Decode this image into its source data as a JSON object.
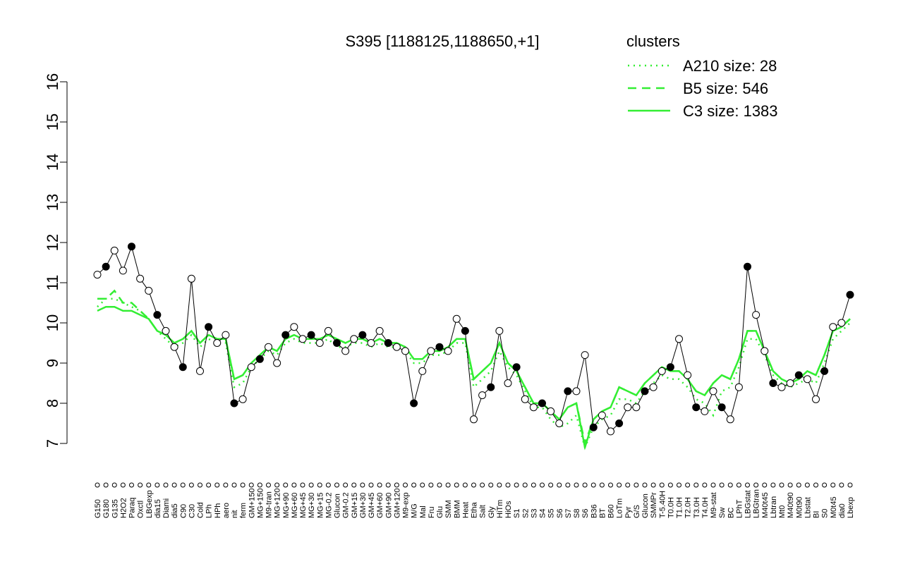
{
  "chart_data": {
    "type": "line",
    "title": "S395 [1188125,1188650,+1]",
    "legend_title": "clusters",
    "color": "#000000",
    "cluster_color": "#33ee33",
    "categories": [
      "G150",
      "G180",
      "G135",
      "H2O2",
      "Paraq",
      "Oxctl",
      "LBGexp",
      "dia15",
      "Diami",
      "dia5",
      "C90",
      "C30",
      "Cold",
      "LPh",
      "HPh",
      "aero",
      "nit",
      "ferm",
      "GM+150",
      "MG+150",
      "M9-tran",
      "MG+120",
      "MG+90",
      "MG+60",
      "MG+45",
      "MG+30",
      "MG+15",
      "MG-0.2",
      "Glucon",
      "GM-0.2",
      "GM+15",
      "GM+30",
      "GM+45",
      "GM+60",
      "GM+90",
      "GM+120",
      "M9-exp",
      "M/G",
      "Mal",
      "Fru",
      "Glu",
      "SMM",
      "BMM",
      "Heat",
      "Etha",
      "Salt",
      "Gly",
      "HiTm",
      "HiOs",
      "S1",
      "S2",
      "S3",
      "S4",
      "S5",
      "S6",
      "S7",
      "S8",
      "S6",
      "B36",
      "BT",
      "B60",
      "LoTm",
      "Pyr",
      "G/S",
      "Glucon",
      "SMMPr",
      "T-5.40H",
      "T0.0H",
      "T1.0H",
      "T2.0H",
      "T3.0H",
      "T4.0H",
      "M9-stat",
      "Sw",
      "BC",
      "LPhT",
      "LBGstat",
      "LBGtran",
      "M40t45",
      "Lbtran",
      "Mt0",
      "M40t90",
      "M0t90",
      "Lbstat",
      "BI",
      "S0",
      "M0t45",
      "dia0",
      "Lbexp"
    ],
    "values": [
      11.2,
      11.4,
      11.8,
      11.3,
      11.9,
      11.1,
      10.8,
      10.2,
      9.8,
      9.4,
      8.9,
      11.1,
      8.8,
      9.9,
      9.5,
      9.7,
      8.0,
      8.1,
      8.9,
      9.1,
      9.4,
      9.0,
      9.7,
      9.9,
      9.6,
      9.7,
      9.5,
      9.8,
      9.5,
      9.3,
      9.6,
      9.7,
      9.5,
      9.8,
      9.5,
      9.4,
      9.3,
      8.0,
      8.8,
      9.3,
      9.4,
      9.3,
      10.1,
      9.8,
      7.6,
      8.2,
      8.4,
      9.8,
      8.5,
      8.9,
      8.1,
      7.9,
      8.0,
      7.8,
      7.5,
      8.3,
      8.3,
      9.2,
      7.4,
      7.7,
      7.3,
      7.5,
      7.9,
      7.9,
      8.3,
      8.4,
      8.8,
      8.9,
      9.6,
      8.7,
      7.9,
      7.8,
      8.3,
      7.9,
      7.6,
      8.4,
      11.4,
      10.2,
      9.3,
      8.5,
      8.4,
      8.5,
      8.7,
      8.6,
      8.1,
      8.8,
      9.9,
      10.0,
      10.7
    ],
    "series": [
      {
        "name": "A210 size: 28",
        "style": "dotted",
        "values": [
          10.4,
          10.6,
          10.6,
          10.5,
          10.4,
          10.3,
          10.1,
          9.8,
          9.6,
          9.4,
          9.5,
          9.7,
          9.4,
          9.6,
          9.5,
          9.5,
          8.4,
          8.5,
          8.9,
          9.1,
          9.3,
          9.2,
          9.5,
          9.6,
          9.5,
          9.5,
          9.5,
          9.6,
          9.4,
          9.4,
          9.5,
          9.5,
          9.4,
          9.5,
          9.4,
          9.4,
          9.3,
          9.0,
          9.0,
          9.2,
          9.2,
          9.3,
          9.5,
          9.5,
          8.4,
          8.6,
          8.8,
          9.3,
          8.9,
          8.7,
          8.3,
          7.9,
          7.9,
          7.6,
          7.4,
          7.5,
          7.7,
          6.9,
          7.4,
          7.6,
          7.7,
          8.1,
          8.1,
          8.0,
          8.3,
          8.5,
          8.7,
          8.6,
          8.6,
          8.4,
          8.1,
          8.0,
          7.7,
          8.3,
          8.4,
          8.9,
          9.6,
          9.6,
          9.2,
          8.7,
          8.5,
          8.4,
          8.5,
          8.6,
          8.5,
          9.0,
          9.6,
          9.8,
          10.0
        ]
      },
      {
        "name": "B5 size: 546",
        "style": "dashed",
        "values": [
          10.6,
          10.6,
          10.8,
          10.5,
          10.5,
          10.3,
          10.1,
          9.8,
          9.7,
          9.5,
          9.6,
          9.8,
          9.5,
          9.7,
          9.6,
          9.6,
          8.6,
          8.7,
          9.0,
          9.2,
          9.4,
          9.3,
          9.6,
          9.7,
          9.6,
          9.6,
          9.6,
          9.7,
          9.6,
          9.5,
          9.6,
          9.6,
          9.5,
          9.6,
          9.5,
          9.5,
          9.4,
          9.1,
          9.1,
          9.3,
          9.3,
          9.4,
          9.6,
          9.6,
          8.6,
          8.8,
          9.0,
          9.5,
          9.0,
          8.8,
          8.4,
          8.0,
          8.0,
          7.8,
          7.6,
          7.9,
          8.0,
          7.0,
          7.6,
          7.8,
          7.9,
          8.4,
          8.3,
          8.2,
          8.5,
          8.7,
          8.9,
          8.8,
          8.8,
          8.6,
          8.3,
          8.2,
          8.5,
          8.7,
          8.6,
          9.1,
          9.8,
          9.8,
          9.3,
          8.8,
          8.6,
          8.5,
          8.6,
          8.8,
          8.7,
          9.2,
          9.8,
          9.9,
          10.1
        ]
      },
      {
        "name": "C3 size: 1383",
        "style": "solid",
        "values": [
          10.3,
          10.4,
          10.4,
          10.3,
          10.3,
          10.2,
          10.1,
          9.8,
          9.7,
          9.5,
          9.6,
          9.8,
          9.5,
          9.7,
          9.6,
          9.6,
          8.6,
          8.7,
          9.0,
          9.2,
          9.4,
          9.3,
          9.6,
          9.7,
          9.6,
          9.6,
          9.6,
          9.7,
          9.6,
          9.5,
          9.6,
          9.6,
          9.5,
          9.6,
          9.5,
          9.5,
          9.4,
          9.1,
          9.1,
          9.3,
          9.3,
          9.4,
          9.6,
          9.6,
          8.6,
          8.8,
          9.0,
          9.5,
          9.0,
          8.8,
          8.4,
          8.0,
          8.0,
          7.8,
          7.6,
          7.9,
          8.0,
          6.9,
          7.6,
          7.8,
          7.9,
          8.4,
          8.3,
          8.2,
          8.5,
          8.7,
          8.9,
          8.8,
          8.8,
          8.6,
          8.3,
          8.2,
          8.5,
          8.7,
          8.6,
          9.1,
          9.8,
          9.8,
          9.3,
          8.8,
          8.6,
          8.5,
          8.6,
          8.8,
          8.7,
          9.2,
          9.8,
          9.9,
          10.1
        ]
      }
    ],
    "ylim": [
      7,
      16
    ],
    "yticks": [
      7,
      8,
      9,
      10,
      11,
      12,
      13,
      14,
      15,
      16
    ]
  }
}
